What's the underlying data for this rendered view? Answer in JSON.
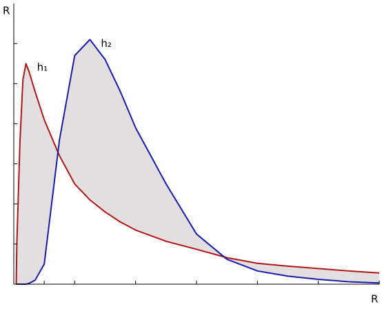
{
  "chart_data": {
    "type": "line",
    "x_label": "R",
    "y_label": "R",
    "x": [
      0.08,
      0.1,
      0.2,
      0.3,
      0.4,
      0.5,
      0.7,
      1.0,
      1.5,
      2,
      2.5,
      3,
      3.5,
      4,
      5,
      6,
      7,
      8,
      9,
      10,
      11,
      12
    ],
    "series": [
      {
        "name": "h₁",
        "color": "#b01515",
        "values": [
          0,
          1.0,
          3.5,
          5.1,
          5.5,
          5.3,
          4.8,
          4.1,
          3.2,
          2.5,
          2.1,
          1.8,
          1.55,
          1.35,
          1.07,
          0.87,
          0.66,
          0.52,
          0.45,
          0.39,
          0.33,
          0.28
        ]
      },
      {
        "name": "h₂",
        "color": "#1a1aa8",
        "values": [
          0,
          0,
          0,
          0,
          0,
          0.02,
          0.1,
          0.5,
          3.6,
          5.7,
          6.1,
          5.6,
          4.8,
          3.9,
          2.5,
          1.25,
          0.62,
          0.33,
          0.2,
          0.12,
          0.06,
          0.03
        ]
      }
    ],
    "fill_color": "#e3dfe1",
    "xlim": [
      0,
      12
    ],
    "ylim": [
      0,
      7
    ],
    "xticks": [
      1,
      2,
      4,
      6,
      8,
      10,
      12
    ],
    "yticks": [
      1,
      2,
      3,
      4,
      5,
      6
    ]
  }
}
